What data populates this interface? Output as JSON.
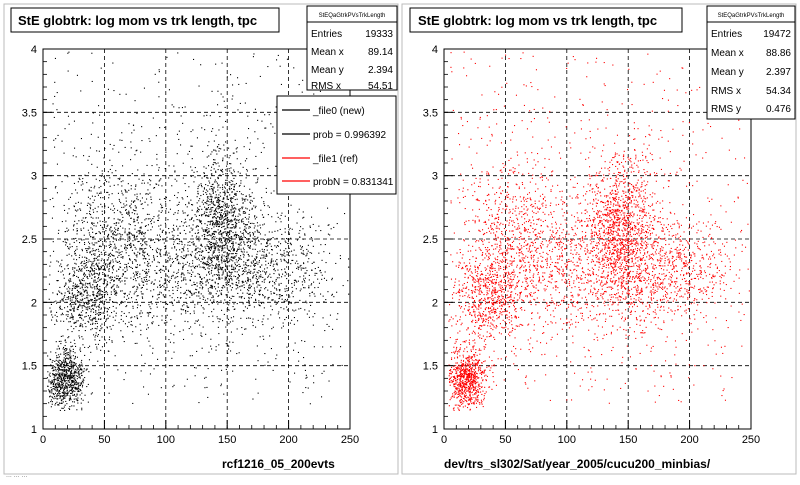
{
  "footer_text": "... ... ...",
  "chart_data": [
    {
      "type": "scatter",
      "title": "StE globtrk: log mom vs trk length, tpc",
      "xlabel": "rcf1216_05_200evts",
      "ylabel": "",
      "xlim": [
        0,
        250
      ],
      "ylim": [
        1,
        4
      ],
      "x_ticks": [
        "0",
        "50",
        "100",
        "150",
        "200",
        "250"
      ],
      "y_ticks": [
        "1",
        "1.5",
        "2",
        "2.5",
        "3",
        "3.5",
        "4"
      ],
      "grid": true,
      "series": [
        {
          "name": "_file0 (new)",
          "color": "#000000"
        }
      ],
      "stats_box": {
        "name": "StEQaGtrkPVsTrkLength",
        "entries": [
          {
            "label": "Entries",
            "value": "19333"
          },
          {
            "label": "Mean x",
            "value": "89.14"
          },
          {
            "label": "Mean y",
            "value": "2.394"
          },
          {
            "label": "RMS x",
            "value": "54.51"
          }
        ]
      },
      "legend": {
        "position": "top-right",
        "entries": [
          {
            "label": "_file0 (new)",
            "color": "#000000"
          },
          {
            "label": "prob = 0.996392",
            "color": "#000000"
          },
          {
            "label": "_file1 (ref)",
            "color": "#ff0000"
          },
          {
            "label": "probN = 0.831341",
            "color": "#ff0000"
          }
        ]
      },
      "density_clusters": [
        {
          "x": 18,
          "y": 1.4,
          "weight": 0.16
        },
        {
          "x": 35,
          "y": 2.05,
          "weight": 0.14
        },
        {
          "x": 60,
          "y": 2.5,
          "weight": 0.18
        },
        {
          "x": 145,
          "y": 2.62,
          "weight": 0.22
        },
        {
          "x": 120,
          "y": 2.3,
          "weight": 0.15
        },
        {
          "x": 180,
          "y": 2.25,
          "weight": 0.15
        }
      ]
    },
    {
      "type": "scatter",
      "title": "StE globtrk: log mom vs trk length, tpc",
      "xlabel": "dev/trs_sl302/Sat/year_2005/cucu200_minbias/",
      "ylabel": "",
      "xlim": [
        0,
        250
      ],
      "ylim": [
        1,
        4
      ],
      "x_ticks": [
        "0",
        "50",
        "100",
        "150",
        "200",
        "250"
      ],
      "y_ticks": [
        "1",
        "1.5",
        "2",
        "2.5",
        "3",
        "3.5",
        "4"
      ],
      "grid": true,
      "series": [
        {
          "name": "_file1 (ref)",
          "color": "#ff0000"
        }
      ],
      "stats_box": {
        "name": "StEQaGtrkPVsTrkLength",
        "entries": [
          {
            "label": "Entries",
            "value": "19472"
          },
          {
            "label": "Mean x",
            "value": "88.86"
          },
          {
            "label": "Mean y",
            "value": "2.397"
          },
          {
            "label": "RMS x",
            "value": "54.34"
          },
          {
            "label": "RMS y",
            "value": "0.476"
          }
        ]
      },
      "density_clusters": [
        {
          "x": 18,
          "y": 1.4,
          "weight": 0.15
        },
        {
          "x": 35,
          "y": 2.05,
          "weight": 0.14
        },
        {
          "x": 60,
          "y": 2.5,
          "weight": 0.18
        },
        {
          "x": 145,
          "y": 2.62,
          "weight": 0.22
        },
        {
          "x": 120,
          "y": 2.3,
          "weight": 0.15
        },
        {
          "x": 180,
          "y": 2.25,
          "weight": 0.16
        }
      ]
    }
  ]
}
